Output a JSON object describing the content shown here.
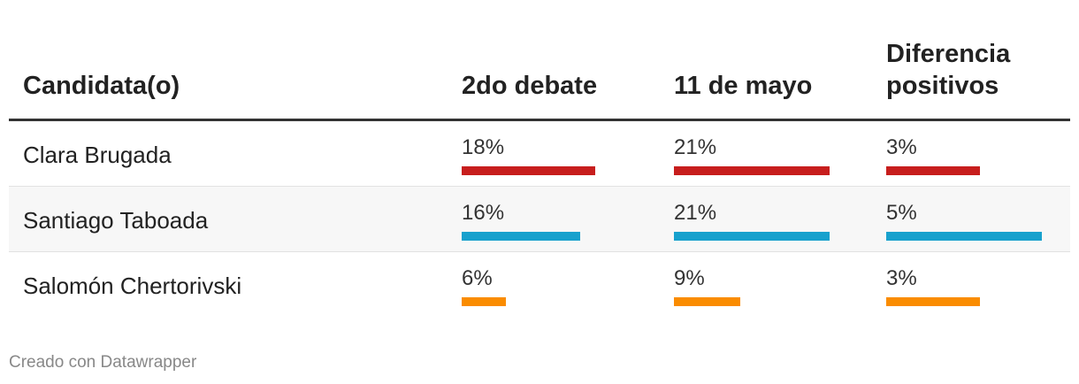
{
  "chart_data": {
    "type": "table",
    "columns": [
      "Candidata(o)",
      "2do debate",
      "11 de mayo",
      "Diferencia positivos"
    ],
    "header": {
      "name": "Candidata(o)",
      "col1": "2do debate",
      "col2": "11 de mayo",
      "col3_line1": "Diferencia",
      "col3_line2": "positivos"
    },
    "rows": [
      {
        "name": "Clara Brugada",
        "color": "#c71e1d",
        "values": [
          18,
          21,
          3
        ],
        "labels": [
          "18%",
          "21%",
          "3%"
        ]
      },
      {
        "name": "Santiago Taboada",
        "color": "#18a1cd",
        "values": [
          16,
          21,
          5
        ],
        "labels": [
          "16%",
          "21%",
          "5%"
        ]
      },
      {
        "name": "Salomón Chertorivski",
        "color": "#fa8c00",
        "values": [
          6,
          9,
          3
        ],
        "labels": [
          "6%",
          "9%",
          "3%"
        ]
      }
    ],
    "column_max": [
      21,
      21,
      5
    ]
  },
  "footer": "Creado con Datawrapper"
}
